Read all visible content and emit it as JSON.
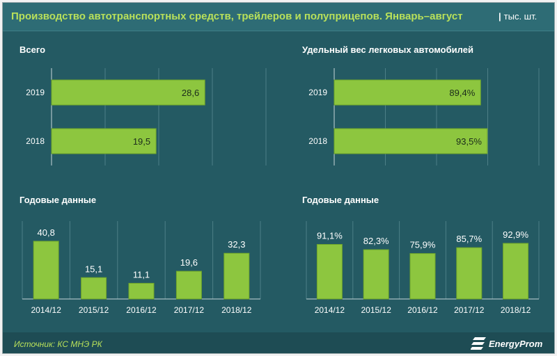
{
  "header": {
    "title": "Производство автотранспортных средств, трейлеров и полуприцепов. Январь–август",
    "separator": "|",
    "unit": "тыс. шт."
  },
  "footer": {
    "source": "Источник: КС МНЭ РК",
    "logo_text": "EnergyProm"
  },
  "colors": {
    "background": "#245a63",
    "header": "#2e6c75",
    "footer": "#1e4c54",
    "bar": "#8dc63f",
    "bar_border": "#6fa52a",
    "title": "#b8e05a",
    "text": "#ffffff",
    "grid": "#4d7f87"
  },
  "sections": {
    "total": "Всего",
    "share": "Удельный вес легковых автомобилей",
    "annual_left": "Годовые данные",
    "annual_right": "Годовые данные"
  },
  "chart_data": [
    {
      "type": "bar",
      "orientation": "horizontal",
      "title": "Всего",
      "categories": [
        "2019",
        "2018"
      ],
      "values": [
        28.6,
        19.5
      ],
      "labels": [
        "28,6",
        "19,5"
      ],
      "xlim": [
        0,
        40
      ],
      "grid": true
    },
    {
      "type": "bar",
      "orientation": "horizontal",
      "title": "Удельный вес легковых автомобилей",
      "categories": [
        "2019",
        "2018"
      ],
      "values": [
        89.4,
        93.5
      ],
      "labels": [
        "89,4%",
        "93,5%"
      ],
      "xlim": [
        0,
        125
      ],
      "grid": true
    },
    {
      "type": "bar",
      "orientation": "vertical",
      "title": "Годовые данные",
      "categories": [
        "2014/12",
        "2015/12",
        "2016/12",
        "2017/12",
        "2018/12"
      ],
      "values": [
        40.8,
        15.1,
        11.1,
        19.6,
        32.3
      ],
      "labels": [
        "40,8",
        "15,1",
        "11,1",
        "19,6",
        "32,3"
      ],
      "ylim": [
        0,
        55
      ],
      "grid": true
    },
    {
      "type": "bar",
      "orientation": "vertical",
      "title": "Годовые данные",
      "categories": [
        "2014/12",
        "2015/12",
        "2016/12",
        "2017/12",
        "2018/12"
      ],
      "values": [
        91.1,
        82.3,
        75.9,
        85.7,
        92.9
      ],
      "labels": [
        "91,1%",
        "82,3%",
        "75,9%",
        "85,7%",
        "92,9%"
      ],
      "ylim": [
        0,
        130
      ],
      "grid": true
    }
  ]
}
